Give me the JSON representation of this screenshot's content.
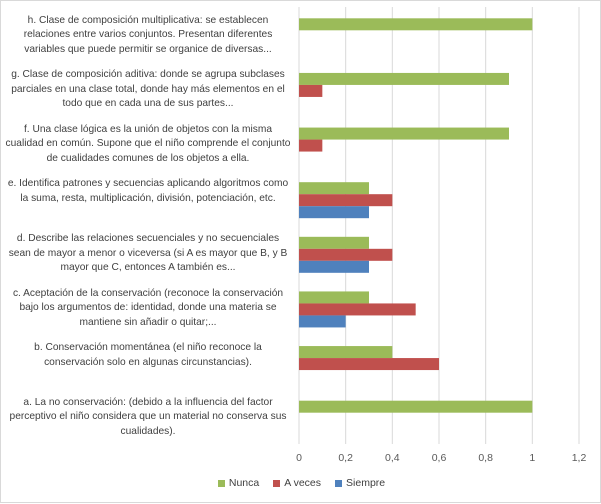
{
  "chart_data": {
    "type": "bar",
    "orientation": "horizontal",
    "categories": [
      "h.    Clase de composición multiplicativa: se establecen relaciones entre varios conjuntos. Presentan diferentes variables que puede permitir se organice de diversas...",
      "g.    Clase de composición aditiva: donde se agrupa subclases parciales en una clase total, donde hay más elementos en el todo que en cada una de sus partes...",
      "f.    Una clase lógica es la unión de objetos con la misma cualidad en común. Supone que el niño comprende el conjunto de cualidades comunes de los objetos a ella.",
      "e.    Identifica patrones y secuencias aplicando algoritmos como la suma, resta, multiplicación, división, potenciación, etc.",
      "d.    Describe las relaciones secuenciales y no secuenciales sean de mayor a menor o viceversa (si A es mayor que B, y B mayor que C, entonces A también es...",
      "c.    Aceptación de la conservación (reconoce la conservación bajo los argumentos de: identidad, donde una materia se mantiene sin añadir o quitar;...",
      "b.    Conservación momentánea (el niño reconoce la conservación solo en algunas circunstancias).",
      "a.    La no conservación: (debido a la influencia del factor perceptivo el niño considera que un material no conserva sus cualidades)."
    ],
    "series": [
      {
        "name": "Nunca",
        "color": "#9bbb59",
        "values": [
          1.0,
          0.9,
          0.9,
          0.3,
          0.3,
          0.3,
          0.4,
          1.0
        ]
      },
      {
        "name": "A veces",
        "color": "#c0504d",
        "values": [
          0,
          0.1,
          0.1,
          0.4,
          0.4,
          0.5,
          0.6,
          0
        ]
      },
      {
        "name": "Siempre",
        "color": "#4f81bd",
        "values": [
          0,
          0,
          0,
          0.3,
          0.3,
          0.2,
          0,
          0
        ]
      }
    ],
    "xlim": [
      0,
      1.2
    ],
    "x_ticks": [
      "0",
      "0,2",
      "0,4",
      "0,6",
      "0,8",
      "1",
      "1,2"
    ],
    "grid": true,
    "legend_position": "bottom"
  }
}
